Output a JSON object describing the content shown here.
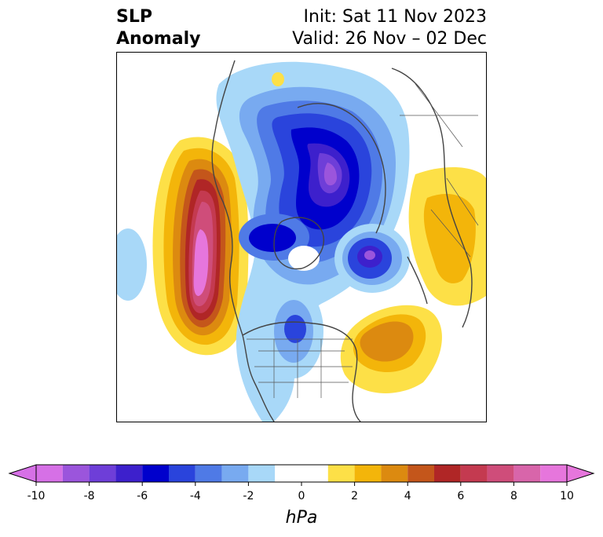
{
  "header": {
    "left_line1": "SLP",
    "left_line2": "Anomaly",
    "right_line1": "Init: Sat 11 Nov 2023",
    "right_line2": "Valid: 26 Nov – 02 Dec"
  },
  "colorbar": {
    "unit": "hPa",
    "ticks": [
      "-10",
      "-8",
      "-6",
      "-4",
      "-2",
      "0",
      "2",
      "4",
      "6",
      "8",
      "10"
    ],
    "min": -10,
    "max": 10,
    "bins": [
      {
        "from": -10,
        "to": -9,
        "color": "#d670e6"
      },
      {
        "from": -9,
        "to": -8,
        "color": "#9b55dc"
      },
      {
        "from": -8,
        "to": -7,
        "color": "#6e3ed8"
      },
      {
        "from": -7,
        "to": -6,
        "color": "#3d20cc"
      },
      {
        "from": -6,
        "to": -5,
        "color": "#0000cc"
      },
      {
        "from": -5,
        "to": -4,
        "color": "#2a44dc"
      },
      {
        "from": -4,
        "to": -3,
        "color": "#4f7ae6"
      },
      {
        "from": -3,
        "to": -2,
        "color": "#78aaf0"
      },
      {
        "from": -2,
        "to": -1,
        "color": "#a8d8f8"
      },
      {
        "from": -1,
        "to": 1,
        "color": "#ffffff"
      },
      {
        "from": 1,
        "to": 2,
        "color": "#fde047"
      },
      {
        "from": 2,
        "to": 3,
        "color": "#f3b50a"
      },
      {
        "from": 3,
        "to": 4,
        "color": "#dc8a10"
      },
      {
        "from": 4,
        "to": 5,
        "color": "#c4561b"
      },
      {
        "from": 5,
        "to": 6,
        "color": "#b02626"
      },
      {
        "from": 6,
        "to": 7,
        "color": "#c43a50"
      },
      {
        "from": 7,
        "to": 8,
        "color": "#cf4d7a"
      },
      {
        "from": 8,
        "to": 9,
        "color": "#d865aa"
      },
      {
        "from": 9,
        "to": 10,
        "color": "#e676dc"
      }
    ],
    "extend_low_color": "#d670e6",
    "extend_high_color": "#e676dc"
  }
}
